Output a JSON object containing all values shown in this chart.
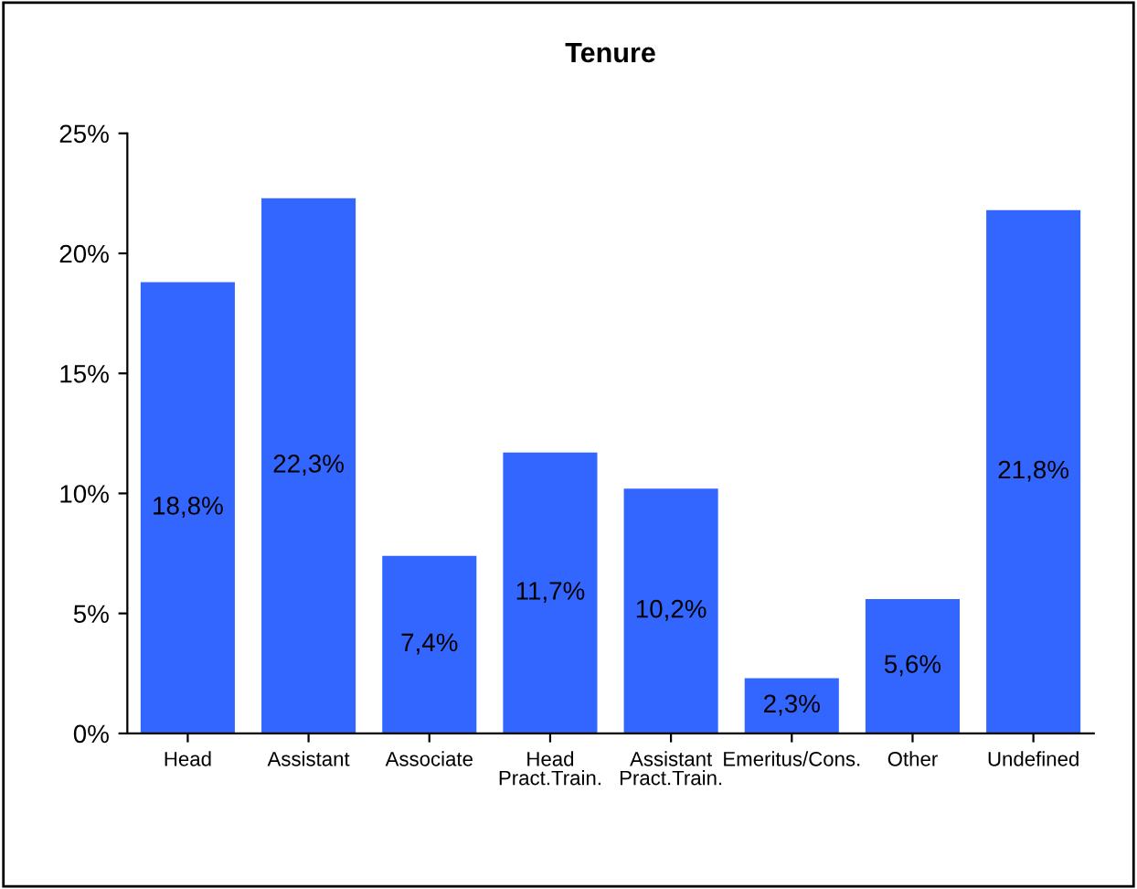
{
  "chart_data": {
    "type": "bar",
    "title": "Tenure",
    "categories": [
      "Head",
      "Assistant",
      "Associate",
      "Head\nPract.Train.",
      "Assistant\nPract.Train.",
      "Emeritus/Cons.",
      "Other",
      "Undefined"
    ],
    "values": [
      18.8,
      22.3,
      7.4,
      11.7,
      10.2,
      2.3,
      5.6,
      21.8
    ],
    "value_labels": [
      "18,8%",
      "22,3%",
      "7,4%",
      "11,7%",
      "10,2%",
      "2,3%",
      "5,6%",
      "21,8%"
    ],
    "color": "#3366ff",
    "ylim": [
      0,
      25
    ],
    "yticks": [
      {
        "value": 0,
        "label": "0%"
      },
      {
        "value": 5,
        "label": "5%"
      },
      {
        "value": 10,
        "label": "10%"
      },
      {
        "value": 15,
        "label": "15%"
      },
      {
        "value": 20,
        "label": "20%"
      },
      {
        "value": 25,
        "label": "25%"
      }
    ],
    "grid": false,
    "legend": false
  }
}
